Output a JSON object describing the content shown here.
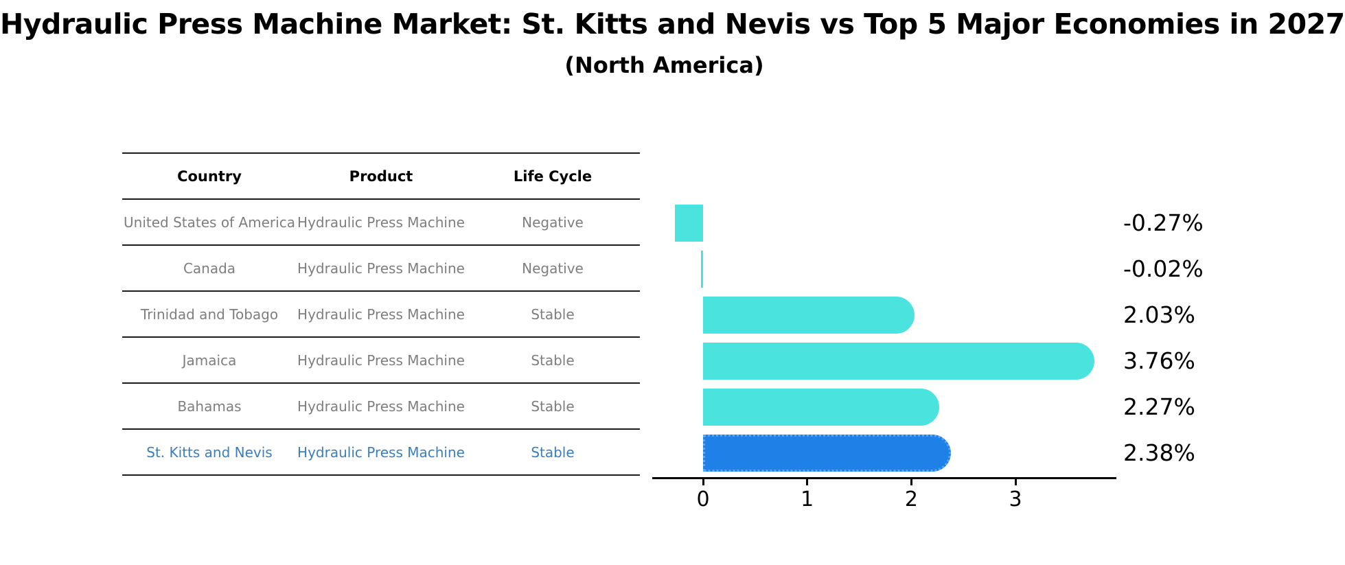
{
  "header": {
    "title": "Hydraulic Press Machine Market: St. Kitts and Nevis vs Top 5 Major Economies in 2027",
    "subtitle": "(North America)"
  },
  "table": {
    "columns": [
      "Country",
      "Product",
      "Life Cycle"
    ],
    "rows": [
      {
        "country": "United States of America",
        "product": "Hydraulic Press Machine",
        "life_cycle": "Negative"
      },
      {
        "country": "Canada",
        "product": "Hydraulic Press Machine",
        "life_cycle": "Negative"
      },
      {
        "country": "Trinidad and Tobago",
        "product": "Hydraulic Press Machine",
        "life_cycle": "Stable"
      },
      {
        "country": "Jamaica",
        "product": "Hydraulic Press Machine",
        "life_cycle": "Stable"
      },
      {
        "country": "Bahamas",
        "product": "Hydraulic Press Machine",
        "life_cycle": "Stable"
      },
      {
        "country": "St. Kitts and Nevis",
        "product": "Hydraulic Press Machine",
        "life_cycle": "Stable"
      }
    ]
  },
  "chart_data": {
    "type": "bar",
    "orientation": "horizontal",
    "title": "Hydraulic Press Machine Market: St. Kitts and Nevis vs Top 5 Major Economies in 2027 (North America)",
    "categories": [
      "United States of America",
      "Canada",
      "Trinidad and Tobago",
      "Jamaica",
      "Bahamas",
      "St. Kitts and Nevis"
    ],
    "values": [
      -0.27,
      -0.02,
      2.03,
      3.76,
      2.27,
      2.38
    ],
    "labels": [
      "-0.27%",
      "-0.02%",
      "2.03%",
      "3.76%",
      "2.27%",
      "2.38%"
    ],
    "unit": "%",
    "x_ticks": [
      0,
      1,
      2,
      3
    ],
    "x_tick_labels": [
      "0",
      "1",
      "2",
      "3"
    ],
    "xlim": [
      -0.49,
      3.97
    ],
    "grid": false,
    "legend": false,
    "bar_color": "#4AE3DE",
    "highlight_color": "#1F80E8",
    "highlight_border": "#58A8F5",
    "highlight_index": 5
  },
  "colors": {
    "table_text": "#7E7E7E",
    "table_header_text": "#000000",
    "highlight_text": "#3A7EBF",
    "rule": "#1C1C1C"
  }
}
